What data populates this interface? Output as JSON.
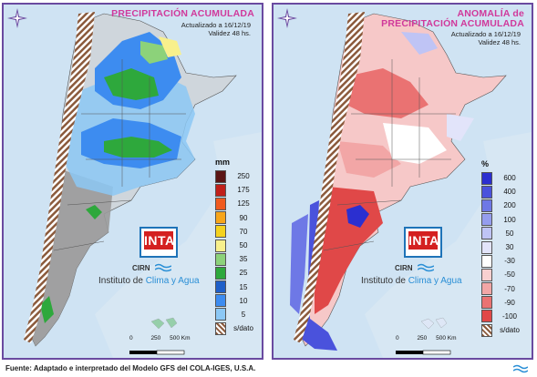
{
  "left_panel": {
    "title_line1": "PRECIPITACIÓN ACUMULADA",
    "updated": "Actualizado a 16/12/19",
    "validity": "Validez 48 hs.",
    "legend_unit": "mm",
    "legend": [
      {
        "label": "250",
        "color": "#5a1414"
      },
      {
        "label": "175",
        "color": "#c0201a"
      },
      {
        "label": "125",
        "color": "#f05a1e"
      },
      {
        "label": "90",
        "color": "#f7a51a"
      },
      {
        "label": "70",
        "color": "#f5d21e"
      },
      {
        "label": "50",
        "color": "#f8f08c"
      },
      {
        "label": "35",
        "color": "#8cd27a"
      },
      {
        "label": "25",
        "color": "#2ea83c"
      },
      {
        "label": "15",
        "color": "#1f5fc8"
      },
      {
        "label": "10",
        "color": "#3d8cf0"
      },
      {
        "label": "5",
        "color": "#8cc8f5"
      },
      {
        "label": "s/dato",
        "color": "hatch"
      }
    ]
  },
  "right_panel": {
    "title_line1": "ANOMALÍA de",
    "title_line2": "PRECIPITACIÓN ACUMULADA",
    "updated": "Actualizado a 16/12/19",
    "validity": "Validez 48 hs.",
    "legend_unit": "%",
    "legend": [
      {
        "label": "600",
        "color": "#2b2fd0"
      },
      {
        "label": "400",
        "color": "#4a52dc"
      },
      {
        "label": "200",
        "color": "#6e78e6"
      },
      {
        "label": "100",
        "color": "#959dee"
      },
      {
        "label": "50",
        "color": "#bfc4f5"
      },
      {
        "label": "30",
        "color": "#e2e4fa"
      },
      {
        "label": "-30",
        "color": "#ffffff"
      },
      {
        "label": "-50",
        "color": "#f8d0d0"
      },
      {
        "label": "-70",
        "color": "#f2a6a6"
      },
      {
        "label": "-90",
        "color": "#ea7272"
      },
      {
        "label": "-100",
        "color": "#e04848"
      },
      {
        "label": "s/dato",
        "color": "hatch"
      }
    ]
  },
  "branding": {
    "inta": "INTA",
    "cirn": "CIRN",
    "institute_prefix": "Instituto de ",
    "institute_highlight": "Clima y Agua"
  },
  "scale": {
    "ticks": [
      "0",
      "250",
      "500 Km"
    ]
  },
  "footer": {
    "text": "Fuente: Adaptado e interpretado del Modelo GFS del COLA-IGES, U.S.A."
  }
}
